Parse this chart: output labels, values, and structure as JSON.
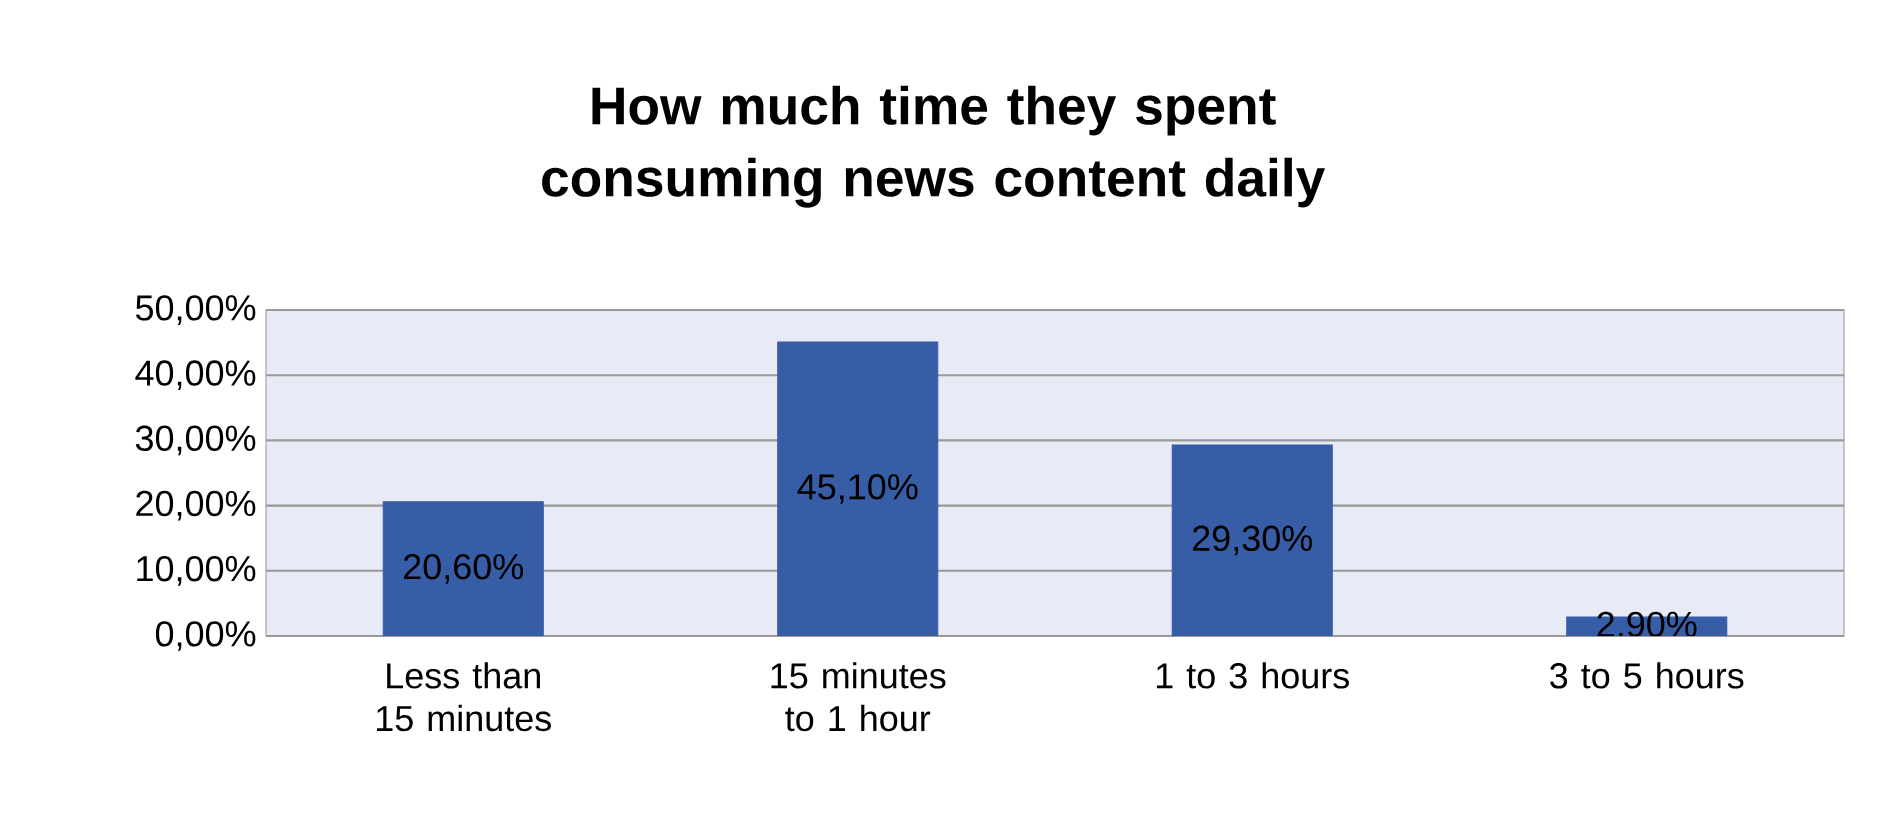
{
  "chart_data": {
    "type": "bar",
    "title": "How much time they spent consuming news content daily",
    "categories": [
      "Less than 15 minutes",
      "15 minutes to 1 hour",
      "1 to 3 hours",
      "3 to 5 hours"
    ],
    "values": [
      20.6,
      45.1,
      29.3,
      2.9
    ],
    "value_labels": [
      "20,60%",
      "45,10%",
      "29,30%",
      "2,90%"
    ],
    "color": "#365da6",
    "ylim": [
      0,
      50
    ],
    "yticks": [
      {
        "value": 0,
        "label": "0,00%"
      },
      {
        "value": 10,
        "label": "10,00%"
      },
      {
        "value": 20,
        "label": "20,00%"
      },
      {
        "value": 30,
        "label": "30,00%"
      },
      {
        "value": 40,
        "label": "40,00%"
      },
      {
        "value": 50,
        "label": "50,00%"
      }
    ],
    "grid": "y"
  }
}
